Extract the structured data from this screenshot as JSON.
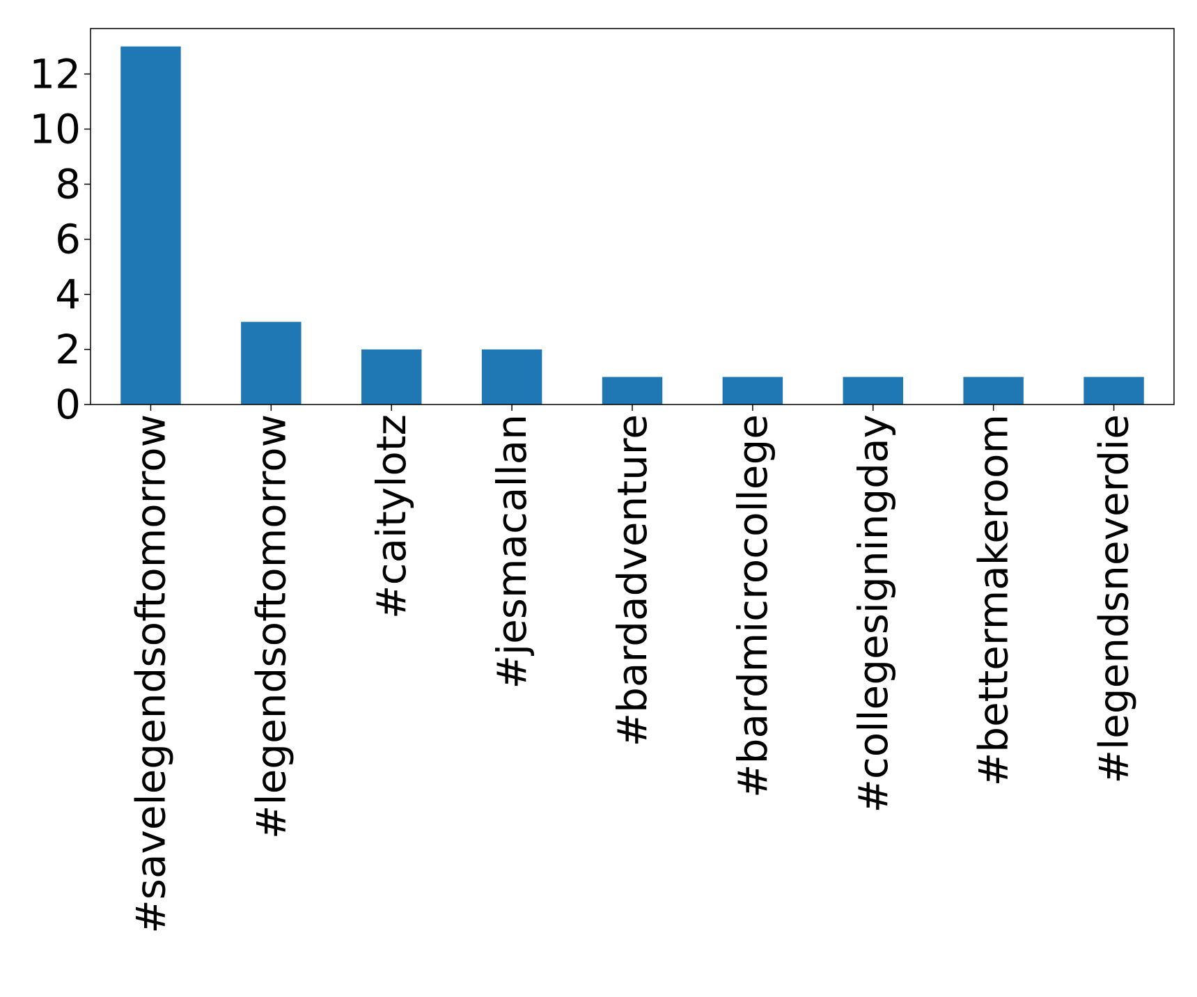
{
  "chart_data": {
    "type": "bar",
    "title": "",
    "xlabel": "",
    "ylabel": "",
    "categories": [
      "#savelegendsoftomorrow",
      "#legendsoftomorrow",
      "#caitylotz",
      "#jesmacallan",
      "#bardadventure",
      "#bardmicrocollege",
      "#collegesigningday",
      "#bettermakeroom",
      "#legendsneverdie"
    ],
    "values": [
      13,
      3,
      2,
      2,
      1,
      1,
      1,
      1,
      1
    ],
    "ylim": [
      0,
      13.65
    ],
    "yticks": [
      0,
      2,
      4,
      6,
      8,
      10,
      12
    ],
    "grid": false,
    "legend": "none",
    "bar_color": "#1f77b4"
  }
}
